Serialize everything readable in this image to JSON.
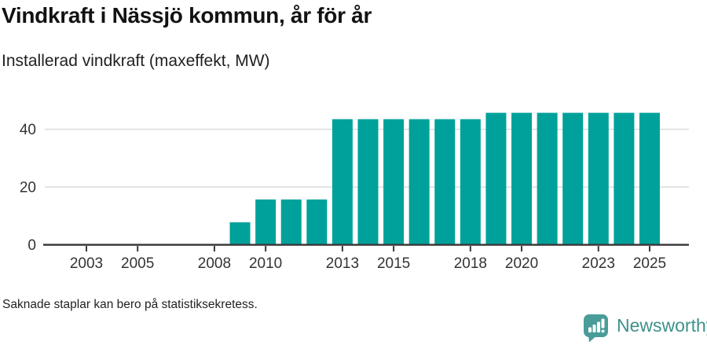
{
  "header": {
    "title": "Vindkraft i Nässjö kommun, år för år",
    "subtitle": "Installerad vindkraft (maxeffekt, MW)"
  },
  "footer": {
    "note": "Saknade staplar kan bero på statistiksekretess.",
    "brand": "Newsworthy"
  },
  "colors": {
    "bar": "#00a19a",
    "grid": "#dcdcdc",
    "axis": "#3b3b3b",
    "label": "#333333",
    "brand": "#4a9c98",
    "brand_text": "#3d918c"
  },
  "chart_data": {
    "type": "bar",
    "title": "Vindkraft i Nässjö kommun, år för år",
    "subtitle": "Installerad vindkraft (maxeffekt, MW)",
    "xlabel": "",
    "ylabel": "Installerad vindkraft (maxeffekt, MW)",
    "categories": [
      2002,
      2003,
      2004,
      2005,
      2006,
      2007,
      2008,
      2009,
      2010,
      2011,
      2012,
      2013,
      2014,
      2015,
      2016,
      2017,
      2018,
      2019,
      2020,
      2021,
      2022,
      2023,
      2024,
      2025
    ],
    "values": [
      null,
      null,
      null,
      null,
      null,
      null,
      null,
      7.8,
      15.7,
      15.7,
      15.7,
      43.5,
      43.5,
      43.5,
      43.5,
      43.5,
      43.5,
      45.7,
      45.7,
      45.7,
      45.7,
      45.7,
      45.7,
      45.7
    ],
    "xticks": [
      2003,
      2005,
      2008,
      2010,
      2013,
      2015,
      2018,
      2020,
      2023,
      2025
    ],
    "yticks": [
      0,
      20,
      40
    ],
    "ylim": [
      0,
      48
    ],
    "grid": "horizontal",
    "legend": "none",
    "bar_color": "#00a19a",
    "note": "Saknade staplar kan bero på statistiksekretess."
  }
}
